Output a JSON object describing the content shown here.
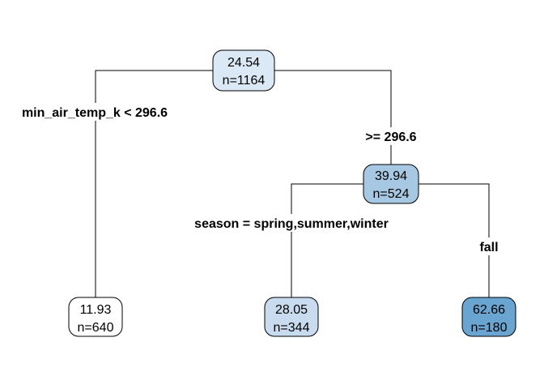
{
  "tree": {
    "nodes": {
      "root": {
        "value": "24.54",
        "count": "n=1164",
        "fill": "#dbe8f5"
      },
      "right": {
        "value": "39.94",
        "count": "n=524",
        "fill": "#a7c8e2"
      },
      "leaf1": {
        "value": "11.93",
        "count": "n=640",
        "fill": "#ffffff"
      },
      "leaf2": {
        "value": "28.05",
        "count": "n=344",
        "fill": "#c9dcef"
      },
      "leaf3": {
        "value": "62.66",
        "count": "n=180",
        "fill": "#6aa5d1"
      }
    },
    "splits": {
      "root_left": "min_air_temp_k < 296.6",
      "root_right": ">= 296.6",
      "right_left": "season = spring,summer,winter",
      "right_right": "fall"
    }
  }
}
